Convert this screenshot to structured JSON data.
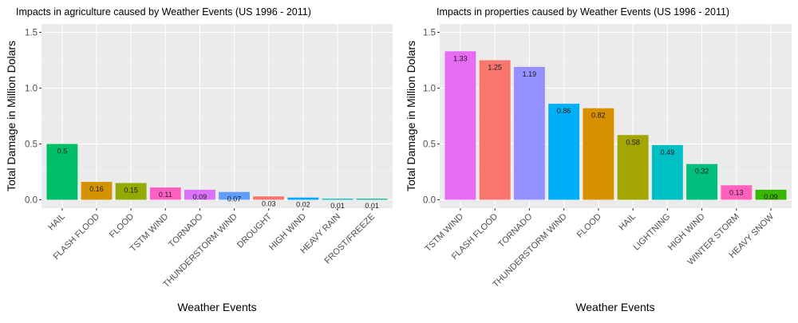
{
  "chart_data": [
    {
      "type": "bar",
      "title": "Impacts in agriculture caused by Weather Events (US 1996 - 2011)",
      "xlabel": "Weather Events",
      "ylabel": "Total Damage in Million Dolars",
      "ylim": [
        -0.075,
        1.575
      ],
      "yticks": [
        0.0,
        0.5,
        1.0,
        1.5
      ],
      "ytick_labels": [
        "0.0",
        "0.5",
        "1.0",
        "1.5"
      ],
      "grid": true,
      "legend": "none",
      "categories": [
        "HAIL",
        "FLASH FLOOD",
        "FLOOD",
        "TSTM WIND",
        "TORNADO",
        "THUNDERSTORM WIND",
        "DROUGHT",
        "HIGH WIND",
        "HEAVY RAIN",
        "FROST/FREEZE"
      ],
      "values": [
        0.5,
        0.16,
        0.15,
        0.11,
        0.09,
        0.07,
        0.03,
        0.02,
        0.01,
        0.01
      ],
      "data_labels": [
        "0.5",
        "0.16",
        "0.15",
        "0.11",
        "0.09",
        "0.07",
        "0.03",
        "0.02",
        "0.01",
        "0.01"
      ],
      "colors": [
        "#00BE67",
        "#D39200",
        "#93AA00",
        "#FF61C3",
        "#DB72FB",
        "#619CFF",
        "#F8766D",
        "#00A9FF",
        "#00BFC4",
        "#00C19A"
      ]
    },
    {
      "type": "bar",
      "title": "Impacts in properties caused by Weather Events (US 1996 - 2011)",
      "xlabel": "Weather Events",
      "ylabel": "Total Damage in Million Dolars",
      "ylim": [
        -0.075,
        1.575
      ],
      "yticks": [
        0.0,
        0.5,
        1.0,
        1.5
      ],
      "ytick_labels": [
        "0.0",
        "0.5",
        "1.0",
        "1.5"
      ],
      "grid": true,
      "legend": "none",
      "categories": [
        "TSTM WIND",
        "FLASH FLOOD",
        "TORNADO",
        "THUNDERSTORM WIND",
        "FLOOD",
        "HAIL",
        "LIGHTNING",
        "HIGH WIND",
        "WINTER STORM",
        "HEAVY SNOW"
      ],
      "values": [
        1.33,
        1.25,
        1.19,
        0.86,
        0.82,
        0.58,
        0.49,
        0.32,
        0.13,
        0.09
      ],
      "data_labels": [
        "1.33",
        "1.25",
        "1.19",
        "0.86",
        "0.82",
        "0.58",
        "0.49",
        "0.32",
        "0.13",
        "0.09"
      ],
      "colors": [
        "#E76BF3",
        "#F8766D",
        "#9590FF",
        "#00B0F6",
        "#D89000",
        "#A3A500",
        "#00BFC4",
        "#00BF7D",
        "#FF62BC",
        "#39B600"
      ]
    }
  ]
}
